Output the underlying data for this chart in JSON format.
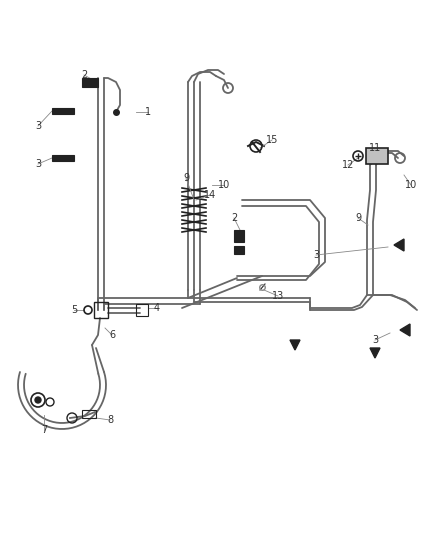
{
  "bg_color": "#ffffff",
  "line_color": "#666666",
  "dark_color": "#222222",
  "mid_color": "#888888",
  "label_color": "#333333",
  "fig_width": 4.38,
  "fig_height": 5.33,
  "dpi": 100,
  "lw_tube": 1.3,
  "lw_thick": 1.8,
  "label_fs": 7.0
}
